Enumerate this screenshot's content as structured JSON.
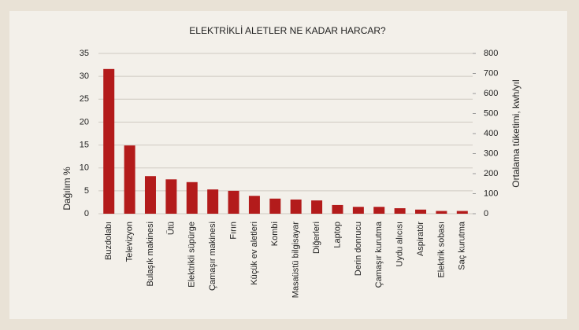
{
  "chart_data": {
    "type": "bar",
    "title": "ELEKTRİKLİ ALETLER NE KADAR HARCAR?",
    "ylabel": "Dağılım %",
    "y2label": "Ortalama tüketimi, kwh/yıl",
    "categories": [
      "Buzdolabı",
      "Televizyon",
      "Bulaşık makinesi",
      "Ütü",
      "Elektrikli süpürge",
      "Çamaşır makinesi",
      "Fırın",
      "Küçük ev aletleri",
      "Kombi",
      "Masaüstü bilgisayar",
      "Diğerleri",
      "Laptop",
      "Derin donrucu",
      "Çamaşır kurutma",
      "Uydu alıcısı",
      "Aspiratör",
      "Elektrik sobası",
      "Saç kurutma"
    ],
    "values": [
      31.6,
      14.9,
      8.2,
      7.5,
      6.9,
      5.3,
      5.0,
      3.9,
      3.3,
      3.1,
      2.9,
      1.9,
      1.5,
      1.5,
      1.2,
      0.9,
      0.6,
      0.6
    ],
    "color": "#b31b1b",
    "ylim": [
      0,
      35
    ],
    "yticks": [
      0,
      5,
      10,
      15,
      20,
      25,
      30,
      35
    ],
    "y2lim": [
      0,
      800
    ],
    "y2ticks": [
      0,
      100,
      200,
      300,
      400,
      500,
      600,
      700,
      800
    ],
    "grid": true
  }
}
